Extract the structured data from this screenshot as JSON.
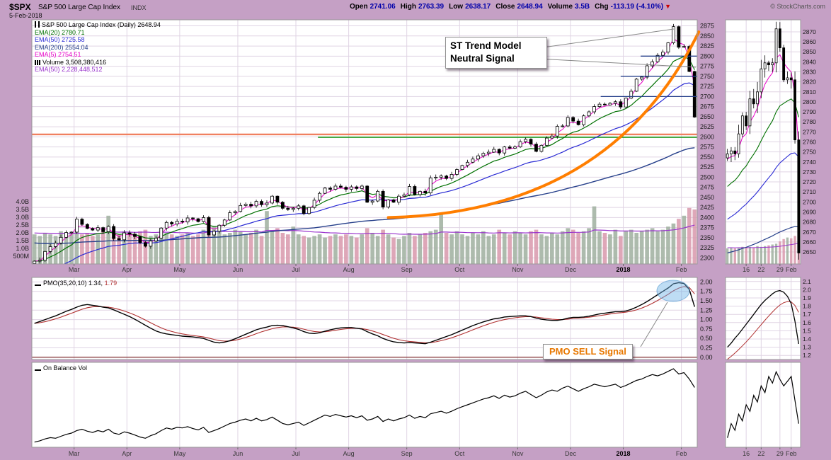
{
  "header": {
    "symbol": "$SPX",
    "title": "S&P 500 Large Cap Index",
    "exchange": "INDX",
    "date": "5-Feb-2018",
    "copyright": "© StockCharts.com",
    "quote": [
      {
        "label": "Open",
        "value": "2741.06"
      },
      {
        "label": "High",
        "value": "2763.39"
      },
      {
        "label": "Low",
        "value": "2638.17"
      },
      {
        "label": "Close",
        "value": "2648.94"
      },
      {
        "label": "Volume",
        "value": "3.5B"
      },
      {
        "label": "Chg",
        "value": "-113.19 (-4.10%)",
        "arrow": "▼"
      }
    ]
  },
  "legend": {
    "title": "S&P 500 Large Cap Index (Daily) 2648.94",
    "items": [
      {
        "text": "EMA(20) 2780.71",
        "color": "#007000"
      },
      {
        "text": "EMA(50) 2725.58",
        "color": "#2A2AD4"
      },
      {
        "text": "EMA(200) 2554.04",
        "color": "#27408B"
      },
      {
        "text": "EMA(5) 2754.51",
        "color": "#E800C8"
      },
      {
        "text": "Volume 3,508,380,416",
        "color": "#000000",
        "icon": "bars"
      },
      {
        "text": "EMA(50) 2,228,448,512",
        "color": "#9933CC"
      }
    ],
    "pmo_label": "PMO(35,20,10) 1.34,",
    "pmo_value": "1.79",
    "obv_label": "On Balance Vol"
  },
  "annotations": {
    "trend_model": {
      "line1": "ST Trend Model",
      "line2": "Neutral Signal"
    },
    "pmo_sell": "PMO SELL Signal"
  },
  "colors": {
    "background": "#C5A0C5",
    "panel": "#FFFFFF",
    "grid": "#E0D4E4",
    "border": "#999999",
    "axis_text": "#1A1A1A",
    "month_text": "#3A3A3A",
    "candle": "#000000",
    "candle_up_fill": "#FFFFFF",
    "vol_up": "#9FAF9F",
    "vol_down": "#D898AC",
    "ema5": "#E800C8",
    "ema20": "#007000",
    "ema50": "#2A2AD4",
    "ema200": "#27408B",
    "vol_ema": "#9933CC",
    "pmo_line": "#000000",
    "pmo_signal": "#B03030",
    "pmo_zero": "#7A1F1F",
    "obv_line": "#000000",
    "hline_salmon": "#F08060",
    "hline_green": "#33A033",
    "hline_blue": "#27408B",
    "parabola": "#FF7E00",
    "highlight_fill": "rgba(110,180,230,0.45)",
    "highlight_stroke": "rgba(80,150,205,0.6)",
    "quote_value": "#0000AA",
    "chg_arrow": "#CC0000",
    "callout_orange": "#E87800",
    "pointer": "#888888"
  },
  "chart_data": {
    "type": "candlestick",
    "title": "S&P 500 Large Cap Index (Daily)",
    "x_range": "Feb-2017 to 5-Feb-2018",
    "price_panel": {
      "ylim": [
        2285,
        2890
      ],
      "y_ticks": [
        2875,
        2850,
        2825,
        2800,
        2775,
        2750,
        2725,
        2700,
        2675,
        2650,
        2625,
        2600,
        2575,
        2550,
        2525,
        2500,
        2475,
        2450,
        2425,
        2400,
        2375,
        2350,
        2325,
        2300
      ],
      "volume_axis": {
        "labels": [
          "4.0B",
          "3.5B",
          "3.0B",
          "2.5B",
          "2.0B",
          "1.5B",
          "1.0B",
          "500M"
        ],
        "values": [
          4.0,
          3.5,
          3.0,
          2.5,
          2.0,
          1.5,
          1.0,
          0.5
        ]
      },
      "month_labels": [
        "Mar",
        "Apr",
        "May",
        "Jun",
        "Jul",
        "Aug",
        "Sep",
        "Oct",
        "Nov",
        "Dec",
        "2018",
        "Feb"
      ],
      "month_start_index": [
        8,
        18,
        28,
        39,
        50,
        60,
        71,
        81,
        92,
        102,
        112,
        123
      ],
      "closes": [
        2292,
        2294,
        2316,
        2328,
        2337,
        2351,
        2363,
        2364,
        2396,
        2383,
        2373,
        2369,
        2375,
        2365,
        2378,
        2348,
        2345,
        2362,
        2359,
        2353,
        2338,
        2329,
        2342,
        2349,
        2374,
        2388,
        2384,
        2391,
        2389,
        2399,
        2397,
        2390,
        2400,
        2357,
        2366,
        2381,
        2394,
        2412,
        2415,
        2430,
        2433,
        2429,
        2440,
        2432,
        2436,
        2453,
        2438,
        2423,
        2420,
        2423,
        2429,
        2410,
        2425,
        2443,
        2460,
        2473,
        2470,
        2478,
        2475,
        2470,
        2476,
        2472,
        2478,
        2438,
        2441,
        2465,
        2426,
        2444,
        2438,
        2453,
        2456,
        2477,
        2457,
        2465,
        2461,
        2498,
        2500,
        2503,
        2497,
        2507,
        2519,
        2529,
        2537,
        2545,
        2553,
        2559,
        2562,
        2569,
        2560,
        2575,
        2572,
        2575,
        2588,
        2594,
        2582,
        2564,
        2579,
        2597,
        2602,
        2626,
        2627,
        2648,
        2639,
        2630,
        2652,
        2662,
        2675,
        2681,
        2679,
        2683,
        2687,
        2674,
        2696,
        2713,
        2743,
        2748,
        2776,
        2786,
        2802,
        2810,
        2833,
        2873,
        2822,
        2824,
        2762,
        2649
      ],
      "volumes": [
        1.9,
        1.8,
        2.0,
        1.9,
        1.8,
        2.1,
        1.9,
        2.0,
        2.1,
        1.9,
        2.0,
        1.8,
        1.9,
        2.2,
        3.1,
        2.0,
        1.9,
        2.1,
        2.0,
        1.9,
        2.1,
        2.2,
        1.8,
        1.9,
        2.3,
        2.0,
        1.9,
        1.8,
        1.9,
        2.0,
        1.8,
        1.9,
        2.2,
        3.0,
        2.4,
        2.1,
        1.9,
        2.0,
        2.2,
        2.1,
        1.9,
        2.0,
        2.2,
        1.8,
        3.4,
        2.1,
        2.3,
        2.0,
        1.9,
        2.4,
        1.9,
        1.8,
        1.7,
        1.8,
        1.9,
        1.7,
        1.8,
        1.9,
        1.8,
        1.9,
        1.8,
        1.7,
        1.9,
        2.3,
        2.0,
        1.8,
        2.2,
        1.9,
        1.7,
        1.6,
        1.8,
        2.0,
        1.8,
        1.9,
        2.0,
        2.1,
        2.2,
        3.3,
        2.0,
        1.9,
        2.1,
        1.9,
        1.8,
        2.0,
        1.9,
        2.1,
        1.8,
        1.9,
        2.2,
        2.0,
        1.9,
        2.1,
        2.0,
        1.9,
        2.1,
        2.2,
        1.9,
        1.8,
        2.0,
        1.9,
        2.1,
        2.3,
        2.2,
        2.0,
        2.1,
        2.3,
        3.7,
        2.1,
        2.0,
        1.9,
        2.2,
        1.8,
        2.1,
        2.2,
        2.0,
        2.1,
        2.2,
        2.3,
        2.1,
        2.2,
        2.4,
        2.6,
        2.9,
        3.1,
        3.6,
        3.5
      ],
      "overlays": [
        {
          "name": "EMA(5)",
          "scaled_period": 3,
          "color_key": "ema5"
        },
        {
          "name": "EMA(20)",
          "scaled_period": 10,
          "color_key": "ema20"
        },
        {
          "name": "EMA(50)",
          "scaled_period": 25,
          "seed": 2255,
          "color_key": "ema50"
        },
        {
          "name": "EMA(200)",
          "scaled_period": 100,
          "seed": 2338,
          "color_key": "ema200"
        }
      ],
      "volume_ema": {
        "name": "EMA(50) volume",
        "scaled_period": 25,
        "seed": 2.0,
        "color_key": "vol_ema"
      },
      "hlines": [
        {
          "y": 2606,
          "x0": 0.0,
          "x1": 1.0,
          "color_key": "hline_salmon",
          "w": 2.4
        },
        {
          "y": 2599,
          "x0": 0.43,
          "x1": 1.0,
          "color_key": "hline_green",
          "w": 1.8
        },
        {
          "y": 2800,
          "x0": 0.915,
          "x1": 1.0,
          "color_key": "hline_blue",
          "w": 1.3
        },
        {
          "y": 2750,
          "x0": 0.885,
          "x1": 1.0,
          "color_key": "hline_blue",
          "w": 1.3
        },
        {
          "y": 2700,
          "x0": 0.855,
          "x1": 1.0,
          "color_key": "hline_blue",
          "w": 1.3
        }
      ],
      "parabola": {
        "i0": 67,
        "p0": 2400,
        "ic": 109,
        "pc": 2412,
        "i1": 125.8,
        "p1": 2860
      }
    },
    "pmo_panel": {
      "label": "PMO(35,20,10)",
      "value": 1.34,
      "signal": 1.79,
      "ylim": [
        -0.06,
        2.12
      ],
      "axis": {
        "labels": [
          "2.00",
          "1.75",
          "1.50",
          "1.25",
          "1.00",
          "0.75",
          "0.50",
          "0.25",
          "0.00"
        ],
        "values": [
          2.0,
          1.75,
          1.5,
          1.25,
          1.0,
          0.75,
          0.5,
          0.25,
          0.0
        ]
      },
      "signal_scaled_period": 5,
      "values": [
        0.9,
        0.95,
        1.0,
        1.05,
        1.1,
        1.16,
        1.22,
        1.27,
        1.33,
        1.38,
        1.4,
        1.38,
        1.36,
        1.33,
        1.31,
        1.26,
        1.2,
        1.14,
        1.08,
        1.01,
        0.93,
        0.85,
        0.77,
        0.7,
        0.65,
        0.62,
        0.6,
        0.58,
        0.56,
        0.55,
        0.54,
        0.52,
        0.5,
        0.45,
        0.4,
        0.38,
        0.4,
        0.44,
        0.49,
        0.55,
        0.61,
        0.67,
        0.73,
        0.77,
        0.8,
        0.84,
        0.85,
        0.84,
        0.81,
        0.78,
        0.74,
        0.68,
        0.64,
        0.63,
        0.65,
        0.69,
        0.73,
        0.76,
        0.78,
        0.79,
        0.79,
        0.77,
        0.75,
        0.68,
        0.62,
        0.57,
        0.5,
        0.45,
        0.41,
        0.39,
        0.38,
        0.39,
        0.38,
        0.37,
        0.36,
        0.4,
        0.45,
        0.5,
        0.55,
        0.6,
        0.66,
        0.72,
        0.78,
        0.84,
        0.89,
        0.94,
        0.98,
        1.02,
        1.04,
        1.07,
        1.08,
        1.09,
        1.1,
        1.1,
        1.08,
        1.04,
        1.01,
        0.99,
        0.98,
        0.98,
        1.0,
        1.04,
        1.06,
        1.06,
        1.07,
        1.09,
        1.12,
        1.15,
        1.17,
        1.19,
        1.21,
        1.21,
        1.23,
        1.27,
        1.33,
        1.4,
        1.48,
        1.57,
        1.66,
        1.75,
        1.84,
        1.95,
        1.98,
        1.96,
        1.8,
        1.34
      ]
    },
    "obv_panel": {
      "label": "On Balance Vol",
      "ylim": [
        0.02,
        1.34
      ],
      "values": [
        0.1,
        0.12,
        0.15,
        0.17,
        0.16,
        0.19,
        0.22,
        0.24,
        0.28,
        0.3,
        0.27,
        0.25,
        0.28,
        0.26,
        0.3,
        0.24,
        0.22,
        0.26,
        0.24,
        0.21,
        0.18,
        0.16,
        0.2,
        0.23,
        0.28,
        0.32,
        0.3,
        0.33,
        0.32,
        0.34,
        0.31,
        0.29,
        0.33,
        0.25,
        0.28,
        0.31,
        0.35,
        0.39,
        0.41,
        0.44,
        0.46,
        0.43,
        0.47,
        0.43,
        0.45,
        0.49,
        0.44,
        0.39,
        0.37,
        0.39,
        0.41,
        0.36,
        0.4,
        0.44,
        0.48,
        0.52,
        0.5,
        0.53,
        0.51,
        0.49,
        0.51,
        0.48,
        0.51,
        0.44,
        0.46,
        0.5,
        0.42,
        0.46,
        0.43,
        0.46,
        0.48,
        0.52,
        0.47,
        0.5,
        0.48,
        0.54,
        0.56,
        0.58,
        0.55,
        0.58,
        0.62,
        0.65,
        0.68,
        0.71,
        0.74,
        0.77,
        0.79,
        0.82,
        0.78,
        0.83,
        0.8,
        0.82,
        0.86,
        0.89,
        0.84,
        0.79,
        0.83,
        0.88,
        0.91,
        0.89,
        0.94,
        0.97,
        0.93,
        0.89,
        0.93,
        0.96,
        1.0,
        0.98,
        0.96,
        0.98,
        1.0,
        0.95,
        0.98,
        1.02,
        1.06,
        1.08,
        1.12,
        1.15,
        1.13,
        1.16,
        1.2,
        1.24,
        1.16,
        1.18,
        1.08,
        0.95
      ]
    },
    "mini": {
      "closes": [
        2748,
        2751,
        2748,
        2768,
        2786,
        2776,
        2803,
        2798,
        2810,
        2833,
        2839,
        2837,
        2839,
        2873,
        2854,
        2822,
        2824,
        2822,
        2762,
        2649
      ],
      "volumes": [
        2.0,
        2.1,
        2.0,
        2.1,
        2.2,
        2.1,
        2.2,
        2.1,
        2.3,
        2.2,
        2.3,
        2.4,
        2.5,
        2.6,
        2.9,
        3.2,
        3.4,
        3.3,
        3.6,
        3.5
      ],
      "pmo": [
        1.3,
        1.35,
        1.41,
        1.46,
        1.52,
        1.58,
        1.64,
        1.7,
        1.76,
        1.82,
        1.87,
        1.91,
        1.95,
        1.98,
        1.99,
        1.97,
        1.92,
        1.83,
        1.62,
        1.34
      ],
      "obv": [
        0.3,
        0.45,
        0.38,
        0.55,
        0.48,
        0.65,
        0.58,
        0.75,
        0.68,
        0.85,
        0.78,
        0.95,
        0.88,
        1.0,
        0.92,
        0.85,
        0.9,
        0.95,
        0.7,
        0.45
      ],
      "price_ylim": [
        2638,
        2882
      ],
      "price_ticks": [
        2870,
        2860,
        2850,
        2840,
        2830,
        2820,
        2810,
        2800,
        2790,
        2780,
        2770,
        2760,
        2750,
        2740,
        2730,
        2720,
        2710,
        2700,
        2690,
        2680,
        2670,
        2660,
        2650
      ],
      "pmo_ylim": [
        1.15,
        2.15
      ],
      "pmo_axis": {
        "labels": [
          "2.1",
          "2.0",
          "1.9",
          "1.8",
          "1.7",
          "1.6",
          "1.5",
          "1.4",
          "1.3",
          "1.2"
        ],
        "values": [
          2.1,
          2.0,
          1.9,
          1.8,
          1.7,
          1.6,
          1.5,
          1.4,
          1.3,
          1.2
        ]
      },
      "obv_ylim": [
        0.2,
        1.1
      ],
      "x_ticks": [
        {
          "label": "16",
          "index": 5
        },
        {
          "label": "22",
          "index": 9
        },
        {
          "label": "29",
          "index": 14
        },
        {
          "label": "Feb",
          "index": 17
        }
      ]
    }
  }
}
